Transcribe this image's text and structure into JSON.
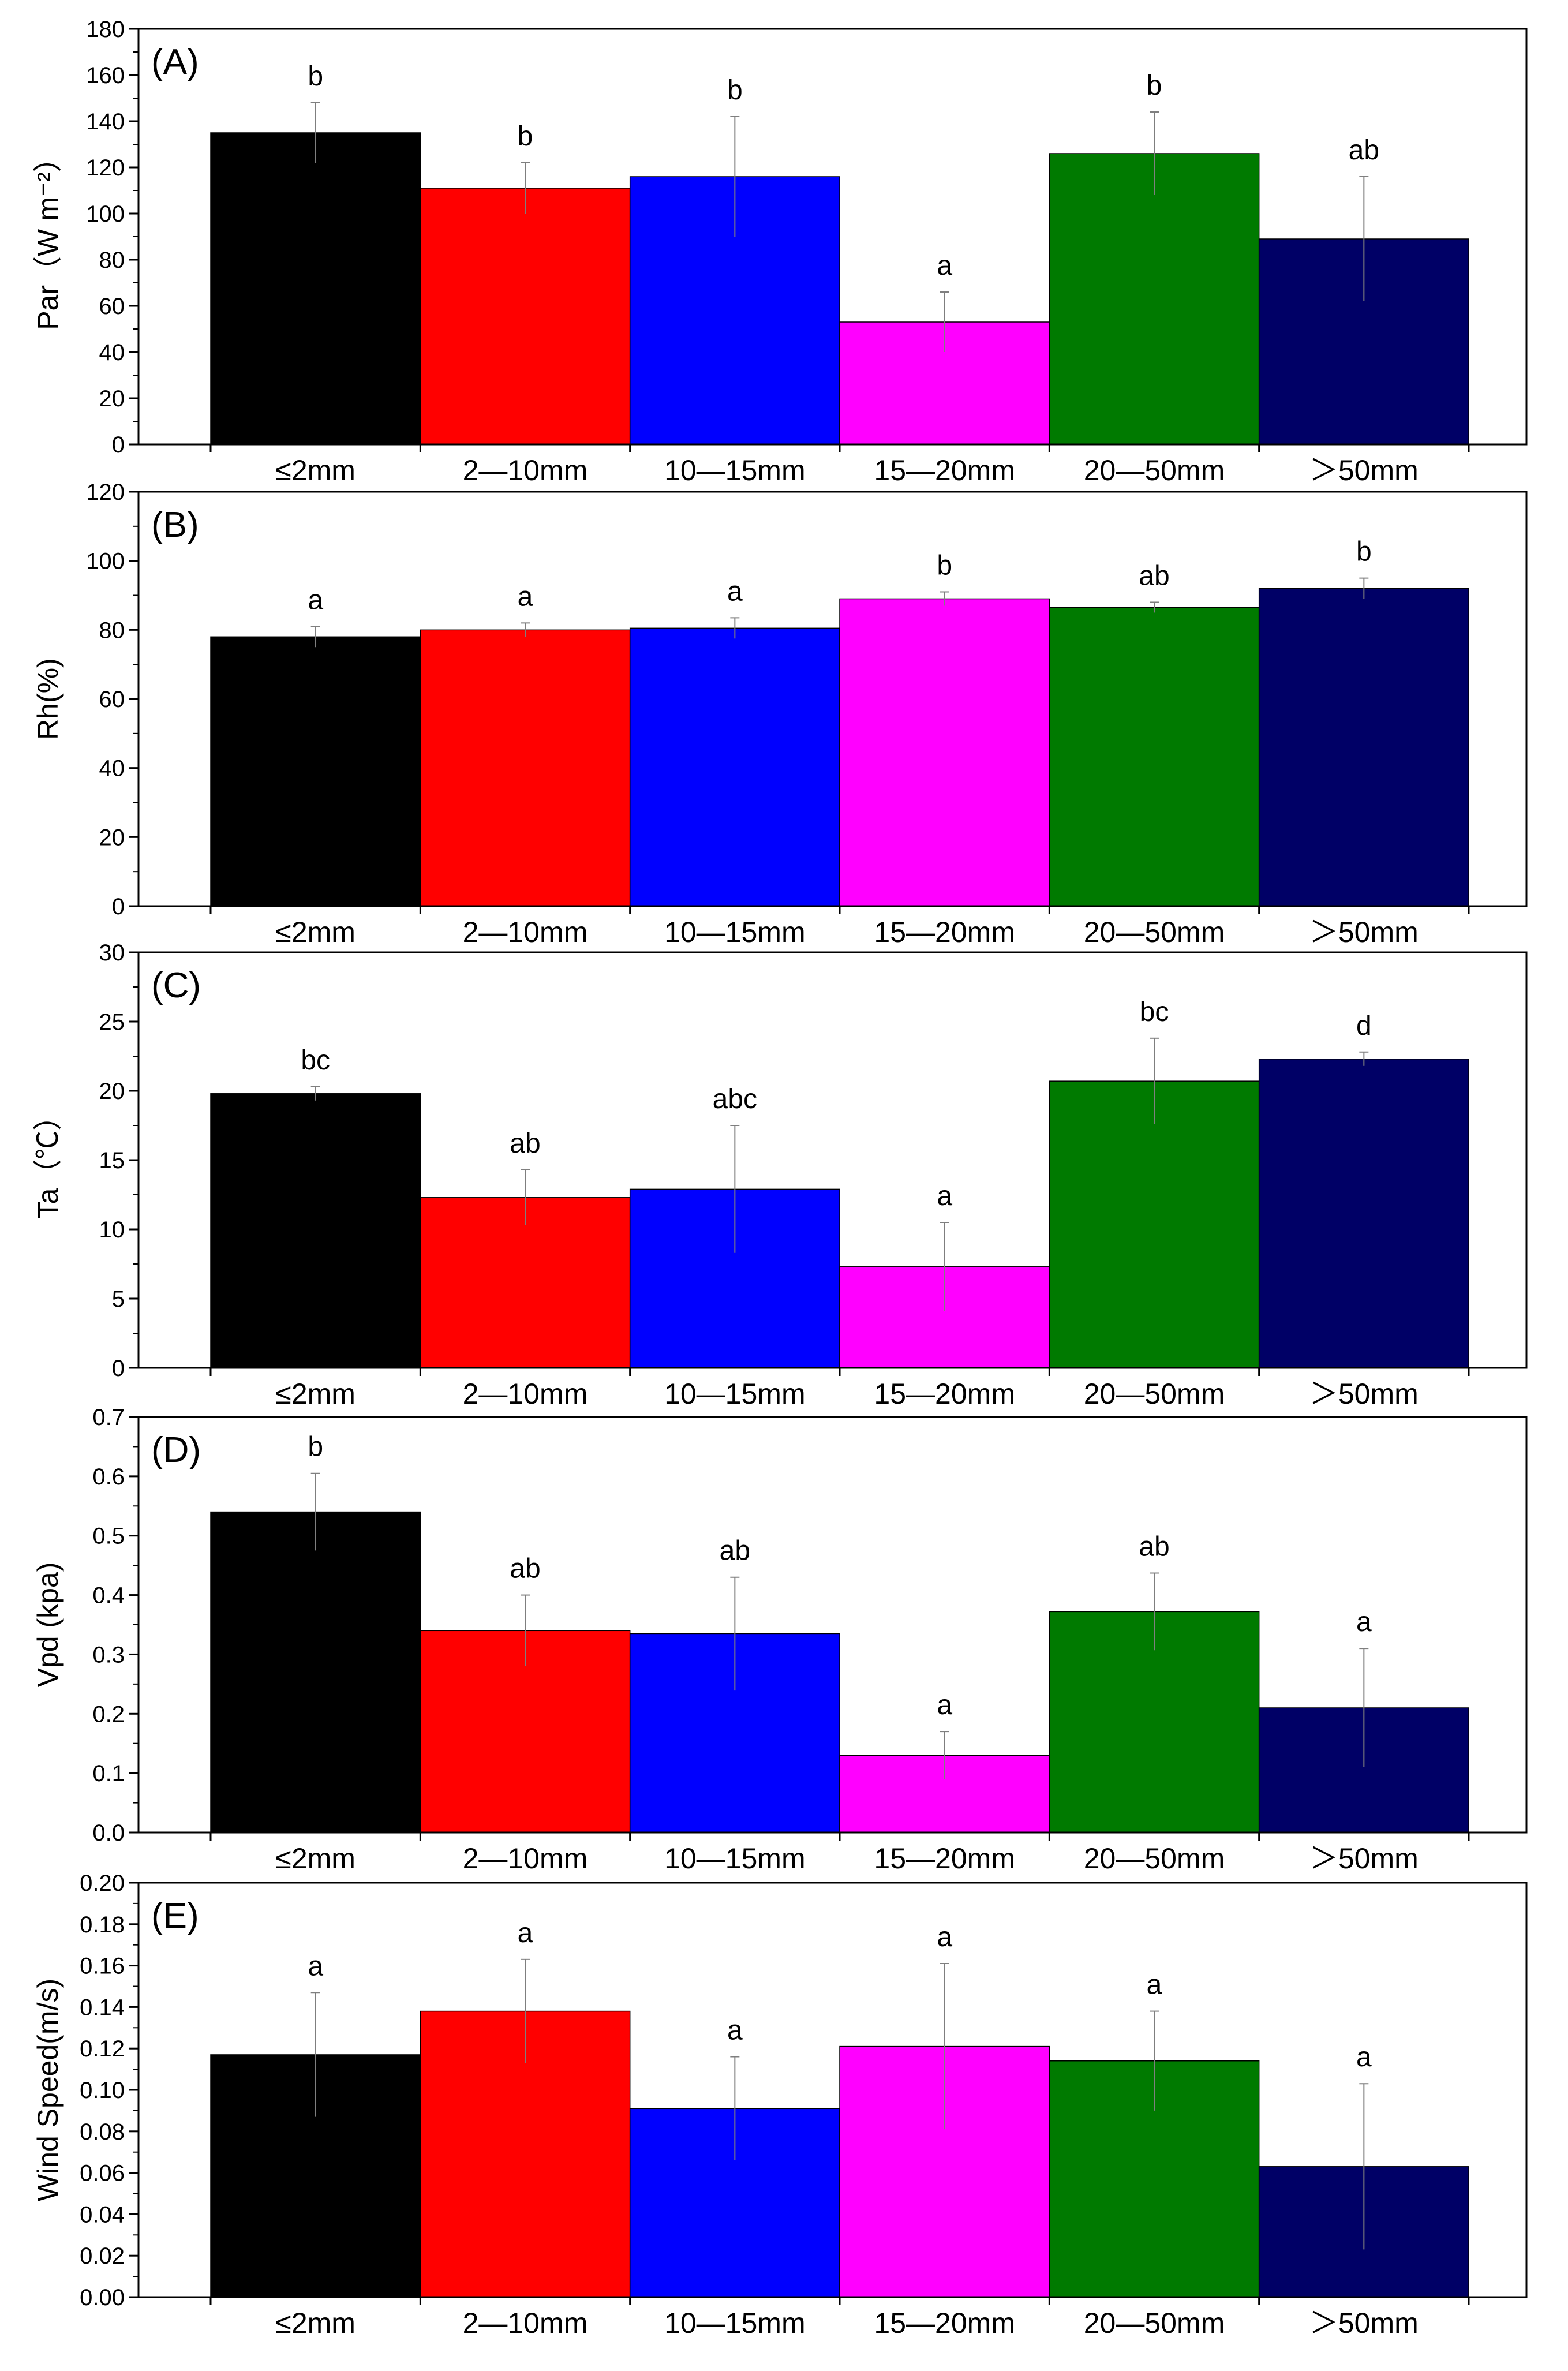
{
  "figure": {
    "categories": [
      "≤2mm",
      "2—10mm",
      "10—15mm",
      "15—20mm",
      "20—50mm",
      "＞50mm"
    ],
    "bar_colors": [
      "#000000",
      "#ff0000",
      "#0000ff",
      "#ff00ff",
      "#007a00",
      "#000066"
    ]
  },
  "chart_data": [
    {
      "type": "bar",
      "panel_label": "(A)",
      "ylabel": "Par（W m⁻²）",
      "categories": [
        "≤2mm",
        "2—10mm",
        "10—15mm",
        "15—20mm",
        "20—50mm",
        "＞50mm"
      ],
      "values": [
        135,
        111,
        116,
        53,
        126,
        89
      ],
      "errors": [
        13,
        11,
        26,
        13,
        18,
        27
      ],
      "letters": [
        "b",
        "b",
        "b",
        "a",
        "b",
        "ab"
      ],
      "ylim": [
        0,
        180
      ],
      "yticks": [
        0,
        20,
        40,
        60,
        80,
        100,
        120,
        140,
        160,
        180
      ],
      "ytick_labels": [
        "0",
        "20",
        "40",
        "60",
        "80",
        "100",
        "120",
        "140",
        "160",
        "180"
      ]
    },
    {
      "type": "bar",
      "panel_label": "(B)",
      "ylabel": "Rh(%)",
      "categories": [
        "≤2mm",
        "2—10mm",
        "10—15mm",
        "15—20mm",
        "20—50mm",
        "＞50mm"
      ],
      "values": [
        78,
        80,
        80.5,
        89,
        86.5,
        92
      ],
      "errors": [
        3,
        2,
        3,
        2,
        1.5,
        3
      ],
      "letters": [
        "a",
        "a",
        "a",
        "b",
        "ab",
        "b"
      ],
      "ylim": [
        0,
        120
      ],
      "yticks": [
        0,
        20,
        40,
        60,
        80,
        100,
        120
      ],
      "ytick_labels": [
        "0",
        "20",
        "40",
        "60",
        "80",
        "100",
        "120"
      ]
    },
    {
      "type": "bar",
      "panel_label": "(C)",
      "ylabel": "Ta（℃）",
      "categories": [
        "≤2mm",
        "2—10mm",
        "10—15mm",
        "15—20mm",
        "20—50mm",
        "＞50mm"
      ],
      "values": [
        19.8,
        12.3,
        12.9,
        7.3,
        20.7,
        22.3
      ],
      "errors": [
        0.5,
        2,
        4.6,
        3.2,
        3.1,
        0.5
      ],
      "letters": [
        "bc",
        "ab",
        "abc",
        "a",
        "bc",
        "d"
      ],
      "ylim": [
        0,
        30
      ],
      "yticks": [
        0,
        5,
        10,
        15,
        20,
        25,
        30
      ],
      "ytick_labels": [
        "0",
        "5",
        "10",
        "15",
        "20",
        "25",
        "30"
      ]
    },
    {
      "type": "bar",
      "panel_label": "(D)",
      "ylabel": "Vpd (kpa)",
      "categories": [
        "≤2mm",
        "2—10mm",
        "10—15mm",
        "15—20mm",
        "20—50mm",
        "＞50mm"
      ],
      "values": [
        0.54,
        0.34,
        0.335,
        0.13,
        0.372,
        0.21
      ],
      "errors": [
        0.065,
        0.06,
        0.095,
        0.04,
        0.065,
        0.1
      ],
      "letters": [
        "b",
        "ab",
        "ab",
        "a",
        "ab",
        "a"
      ],
      "ylim": [
        0,
        0.7
      ],
      "yticks": [
        0,
        0.1,
        0.2,
        0.3,
        0.4,
        0.5,
        0.6,
        0.7
      ],
      "ytick_labels": [
        "0.0",
        "0.1",
        "0.2",
        "0.3",
        "0.4",
        "0.5",
        "0.6",
        "0.7"
      ]
    },
    {
      "type": "bar",
      "panel_label": "(E)",
      "ylabel": "Wind Speed(m/s)",
      "categories": [
        "≤2mm",
        "2—10mm",
        "10—15mm",
        "15—20mm",
        "20—50mm",
        "＞50mm"
      ],
      "values": [
        0.117,
        0.138,
        0.091,
        0.121,
        0.114,
        0.063
      ],
      "errors": [
        0.03,
        0.025,
        0.025,
        0.04,
        0.024,
        0.04
      ],
      "letters": [
        "a",
        "a",
        "a",
        "a",
        "a",
        "a"
      ],
      "ylim": [
        0,
        0.2
      ],
      "yticks": [
        0,
        0.02,
        0.04,
        0.06,
        0.08,
        0.1,
        0.12,
        0.14,
        0.16,
        0.18,
        0.2
      ],
      "ytick_labels": [
        "0.00",
        "0.02",
        "0.04",
        "0.06",
        "0.08",
        "0.10",
        "0.12",
        "0.14",
        "0.16",
        "0.18",
        "0.20"
      ]
    }
  ]
}
